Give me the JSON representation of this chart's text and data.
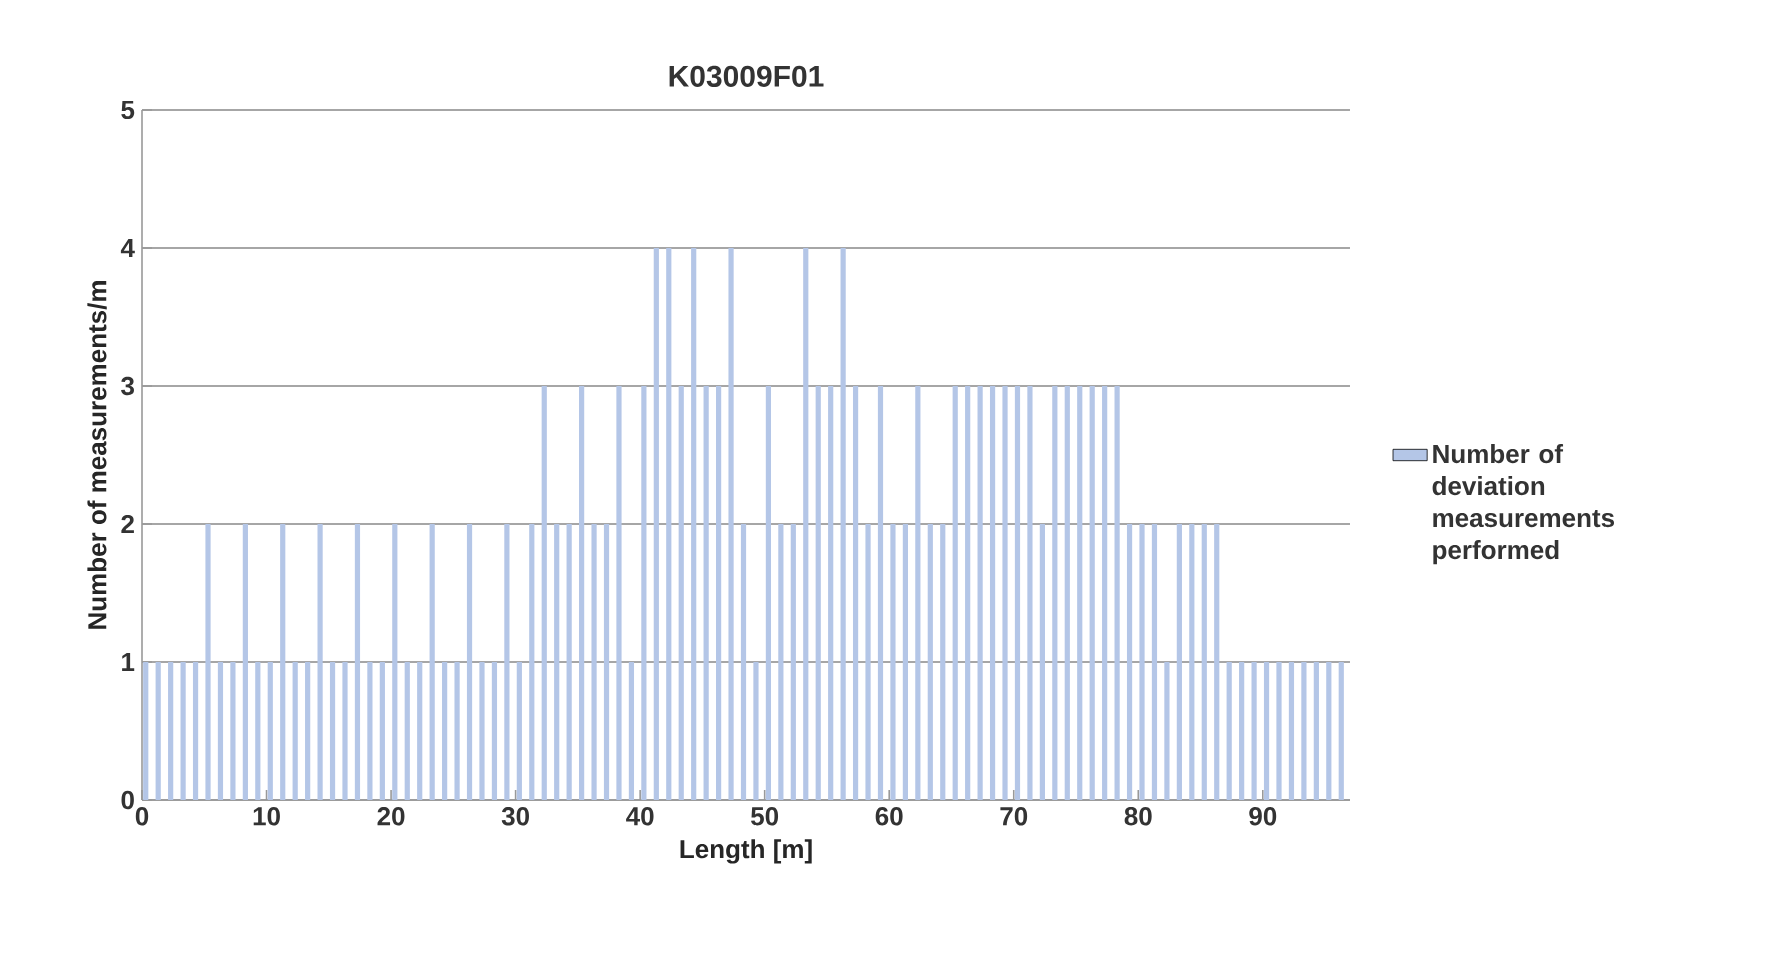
{
  "chart_data": {
    "type": "bar",
    "title": "K03009F01",
    "xlabel": "Length [m]",
    "ylabel": "Number of measurements/m",
    "x": [
      0.3,
      1.3,
      2.3,
      3.3,
      4.3,
      5.3,
      6.3,
      7.3,
      8.3,
      9.3,
      10.3,
      11.3,
      12.3,
      13.3,
      14.3,
      15.3,
      16.3,
      17.3,
      18.3,
      19.3,
      20.3,
      21.3,
      22.3,
      23.3,
      24.3,
      25.3,
      26.3,
      27.3,
      28.3,
      29.3,
      30.3,
      31.3,
      32.3,
      33.3,
      34.3,
      35.3,
      36.3,
      37.3,
      38.3,
      39.3,
      40.3,
      41.3,
      42.3,
      43.3,
      44.3,
      45.3,
      46.3,
      47.3,
      48.3,
      49.3,
      50.3,
      51.3,
      52.3,
      53.3,
      54.3,
      55.3,
      56.3,
      57.3,
      58.3,
      59.3,
      60.3,
      61.3,
      62.3,
      63.3,
      64.3,
      65.3,
      66.3,
      67.3,
      68.3,
      69.3,
      70.3,
      71.3,
      72.3,
      73.3,
      74.3,
      75.3,
      76.3,
      77.3,
      78.3,
      79.3,
      80.3,
      81.3,
      82.3,
      83.3,
      84.3,
      85.3,
      86.3,
      87.3,
      88.3,
      89.3,
      90.3,
      91.3,
      92.3,
      93.3,
      94.3,
      95.3,
      96.3
    ],
    "series": [
      {
        "name": "Number of deviation measurements performed",
        "color": "#b4c6e7",
        "values": [
          1,
          1,
          1,
          1,
          1,
          2,
          1,
          1,
          2,
          1,
          1,
          2,
          1,
          1,
          2,
          1,
          1,
          2,
          1,
          1,
          2,
          1,
          1,
          2,
          1,
          1,
          2,
          1,
          1,
          2,
          1,
          2,
          3,
          2,
          2,
          3,
          2,
          2,
          3,
          1,
          3,
          4,
          4,
          3,
          4,
          3,
          3,
          4,
          2,
          1,
          3,
          2,
          2,
          4,
          3,
          3,
          4,
          3,
          2,
          3,
          2,
          2,
          3,
          2,
          2,
          3,
          3,
          3,
          3,
          3,
          3,
          3,
          2,
          3,
          3,
          3,
          3,
          3,
          3,
          2,
          2,
          2,
          1,
          2,
          2,
          2,
          2,
          1,
          1,
          1,
          1,
          1,
          1,
          1,
          1,
          1,
          1
        ]
      }
    ],
    "xlim": [
      0,
      97
    ],
    "xticks": [
      0,
      10,
      20,
      30,
      40,
      50,
      60,
      70,
      80,
      90
    ],
    "ylim": [
      0,
      5
    ],
    "yticks": [
      0,
      1,
      2,
      3,
      4,
      5
    ],
    "grid": "y",
    "legend": "right"
  }
}
